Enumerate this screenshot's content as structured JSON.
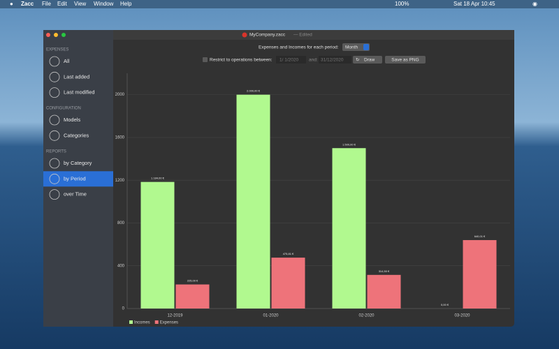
{
  "menu_bar": {
    "app": "Zacc",
    "menus": [
      "File",
      "Edit",
      "View",
      "Window",
      "Help"
    ],
    "battery": "100%",
    "clock": "Sat 18 Apr  10:45"
  },
  "window": {
    "title": "MyCompany.zacc",
    "status": "— Edited"
  },
  "sidebar": {
    "sections": [
      {
        "header": "EXPENSES",
        "items": [
          "All",
          "Last added",
          "Last modified"
        ]
      },
      {
        "header": "CONFIGURATION",
        "items": [
          "Models",
          "Categories"
        ]
      },
      {
        "header": "REPORTS",
        "items": [
          "by Category",
          "by Period",
          "over Time"
        ]
      }
    ]
  },
  "toolbar": {
    "period_label": "Expenses and Incomes for each period:",
    "period": "Month",
    "restrict_label": "Restrict to operations between:",
    "start_date": "1/ 1/2020",
    "and_label": "and:",
    "end_date": "31/12/2020",
    "draw_button": "Draw",
    "save_button": "Save as PNG"
  },
  "chart_data": {
    "type": "bar",
    "categories": [
      "12-2019",
      "01-2020",
      "02-2020",
      "03-2020"
    ],
    "series": [
      {
        "name": "Incomes",
        "color": "#b1f98f",
        "values": [
          1184,
          2000,
          1500,
          0
        ],
        "value_labels": [
          "1.184,00 €",
          "2.000,00 €",
          "1.500,00 €",
          "0,00 €"
        ]
      },
      {
        "name": "Expenses",
        "color": "#ee737a",
        "values": [
          225,
          475.81,
          314.5,
          640.01
        ],
        "value_labels": [
          "225,00 €",
          "475,81 €",
          "314,50 €",
          "640,01 €"
        ]
      }
    ],
    "ylim": [
      0,
      2200
    ],
    "yticks": [
      0,
      400,
      800,
      1200,
      1600,
      2000
    ],
    "grid": true
  }
}
